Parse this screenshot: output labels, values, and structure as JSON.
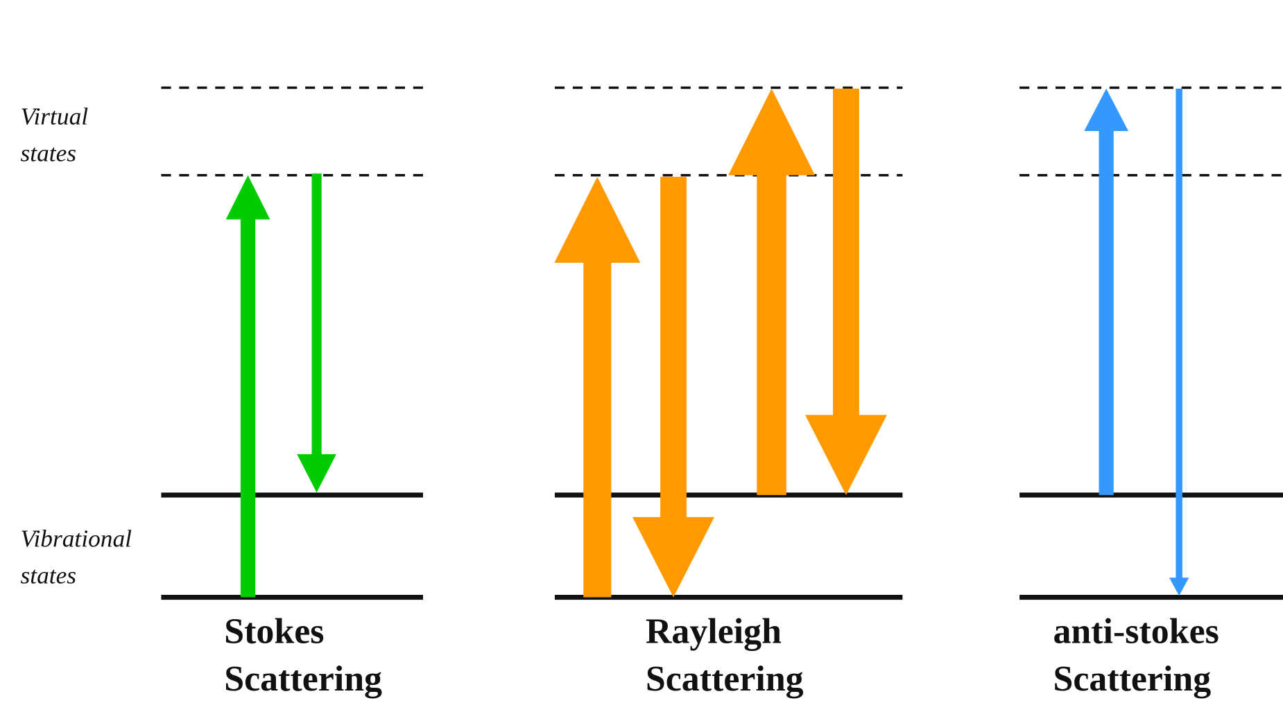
{
  "labels": {
    "virtual": [
      "Virtual",
      "states"
    ],
    "vibrational": [
      "Vibrational",
      "states"
    ]
  },
  "panels": [
    {
      "title": [
        "Stokes",
        "Scattering"
      ]
    },
    {
      "title": [
        "Rayleigh",
        "Scattering"
      ]
    },
    {
      "title": [
        "anti-stokes",
        "Scattering"
      ]
    }
  ]
}
